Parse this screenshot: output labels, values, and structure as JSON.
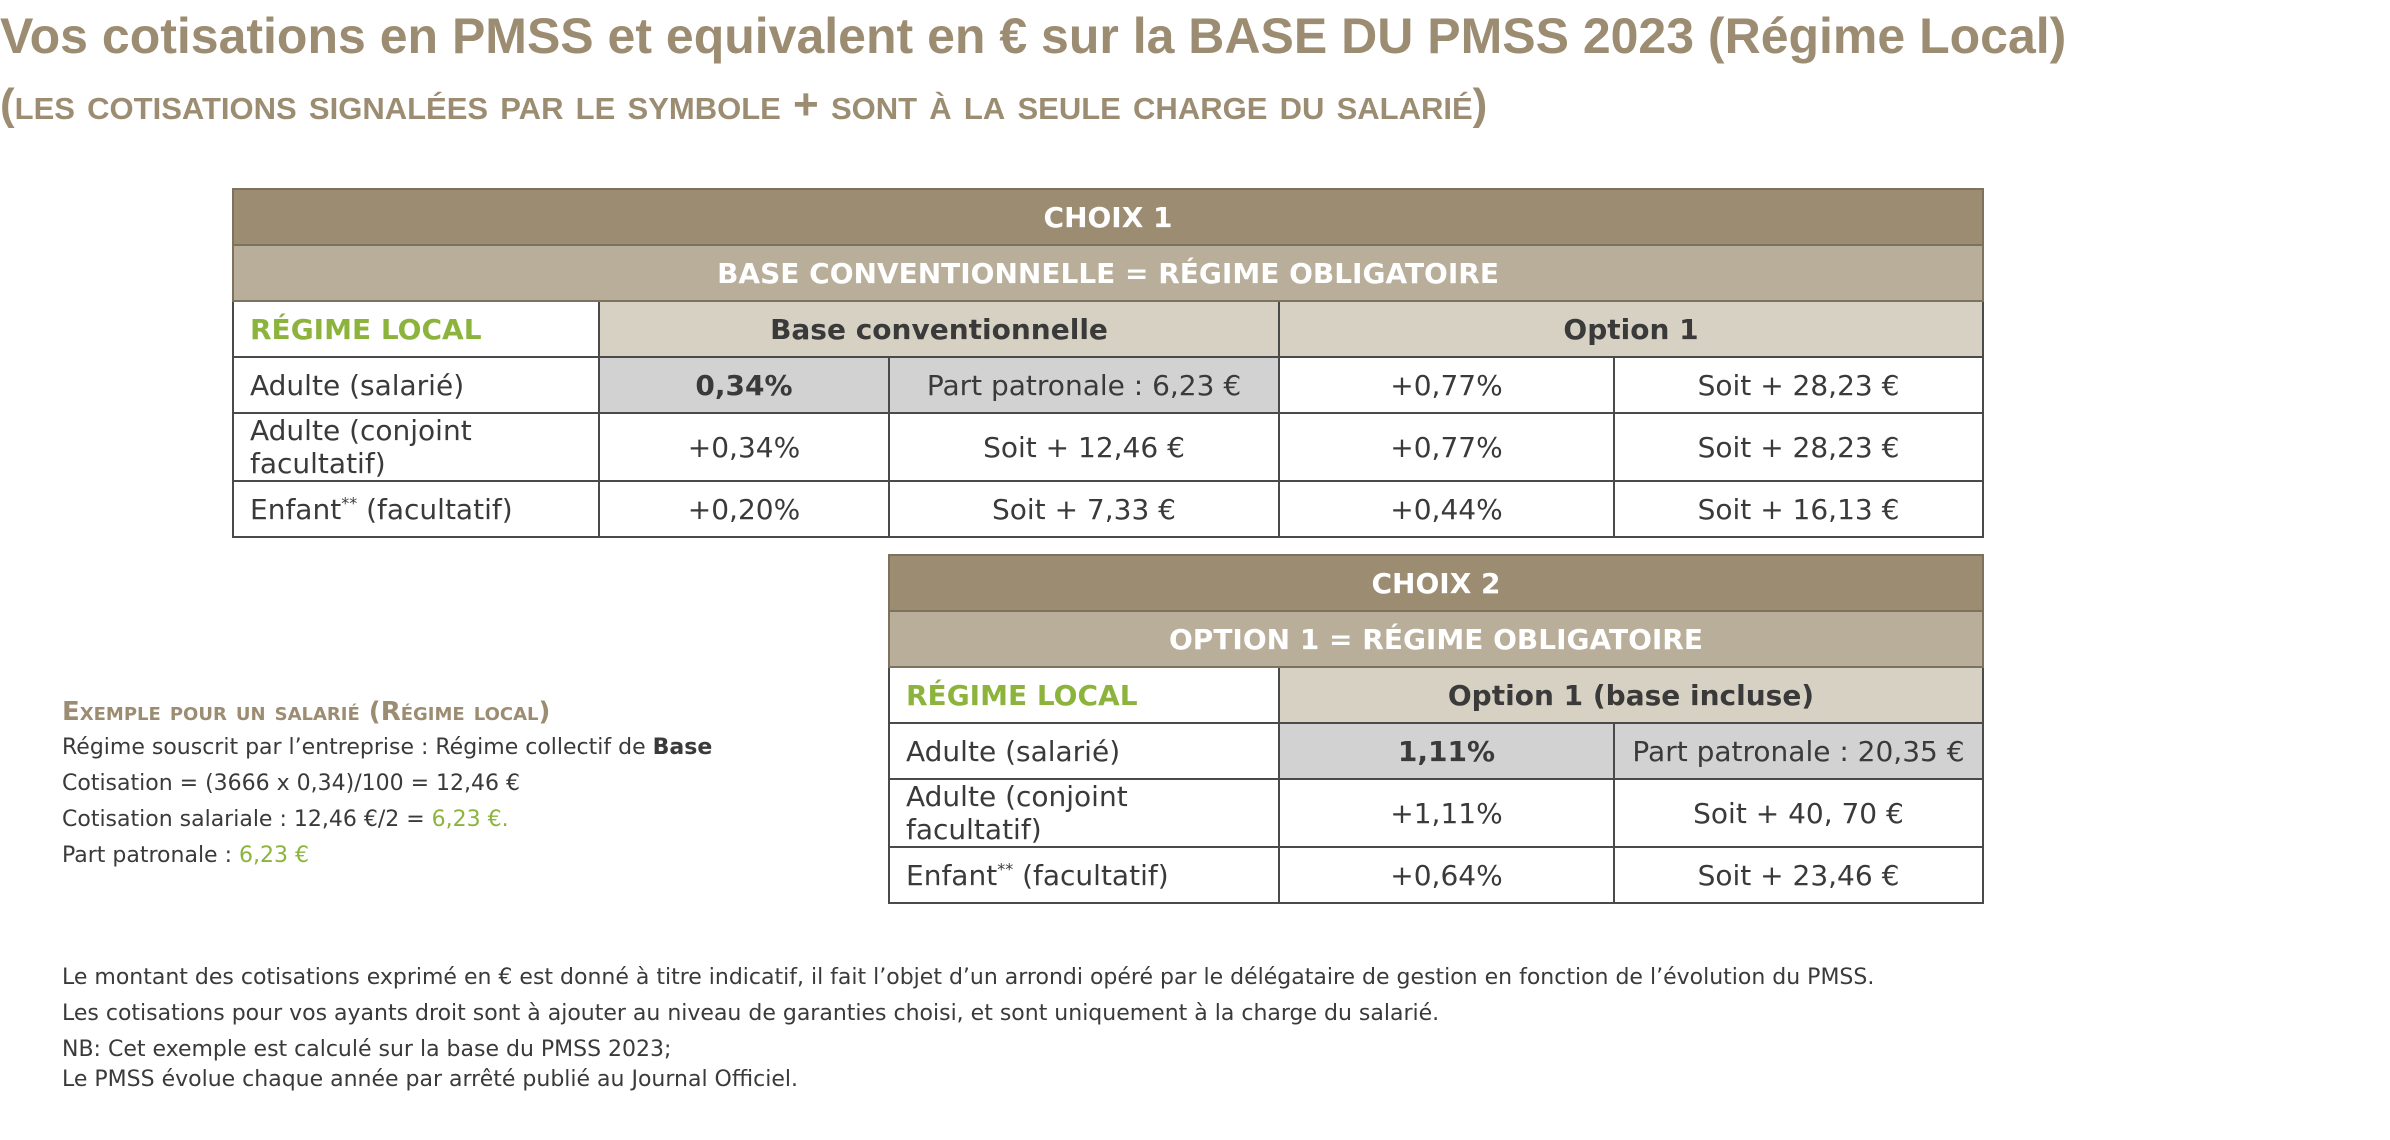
{
  "title": {
    "line1": "Vos cotisations en PMSS et equivalent en € sur la BASE DU PMSS 2023 (Régime Local)",
    "line2_open": "(",
    "line2_text": "LES COTISATIONS SIGNALÉES PAR LE SYMBOLE",
    "line2_plus": " + ",
    "line2_text2": "SONT À LA SEULE CHARGE DU SALARIÉ",
    "line2_close": ")"
  },
  "choix1": {
    "title": "CHOIX 1",
    "subtitle": "BASE CONVENTIONNELLE = RÉGIME OBLIGATOIRE",
    "regime_label": "RÉGIME LOCAL",
    "col_base": "Base conventionnelle",
    "col_option": "Option 1",
    "rows": [
      {
        "label": "Adulte (salarié)",
        "sup": "",
        "label_after": "",
        "base_rate": "0,34%",
        "base_amount": "Part patronale : 6,23 €",
        "opt_rate": "+0,77%",
        "opt_amount": "Soit + 28,23 €"
      },
      {
        "label": "Adulte (conjoint facultatif)",
        "sup": "",
        "label_after": "",
        "base_rate": "+0,34%",
        "base_amount": "Soit + 12,46 €",
        "opt_rate": "+0,77%",
        "opt_amount": "Soit + 28,23 €"
      },
      {
        "label": "Enfant",
        "sup": "**",
        "label_after": " (facultatif)",
        "base_rate": "+0,20%",
        "base_amount": "Soit + 7,33 €",
        "opt_rate": "+0,44%",
        "opt_amount": "Soit + 16,13 €"
      }
    ]
  },
  "choix2": {
    "title": "CHOIX 2",
    "subtitle": "OPTION 1 = RÉGIME OBLIGATOIRE",
    "regime_label": "RÉGIME LOCAL",
    "col_option": "Option 1 (base incluse)",
    "rows": [
      {
        "label": "Adulte (salarié)",
        "sup": "",
        "label_after": "",
        "rate": "1,11%",
        "amount": "Part patronale : 20,35 €"
      },
      {
        "label": "Adulte (conjoint facultatif)",
        "sup": "",
        "label_after": "",
        "rate": "+1,11%",
        "amount": "Soit + 40, 70 €"
      },
      {
        "label": "Enfant",
        "sup": "**",
        "label_after": " (facultatif)",
        "rate": "+0,64%",
        "amount": "Soit + 23,46 €"
      }
    ]
  },
  "example": {
    "title": "Exemple pour un salarié (Régime local)",
    "line1_prefix": "Régime souscrit par l’entreprise : Régime collectif de ",
    "line1_bold": "Base",
    "line2": "Cotisation = (3666 x 0,34)/100 = 12,46 €",
    "line3_prefix": "Cotisation salariale : 12,46 €/2 = ",
    "line3_green": "6,23 €.",
    "line4_prefix": "Part patronale : ",
    "line4_green": "6,23 €"
  },
  "notes": [
    "Le montant des cotisations exprimé en € est donné à titre indicatif, il fait l’objet d’un arrondi opéré par le délégataire de gestion en fonction de l’évolution du PMSS.",
    "Les cotisations pour vos ayants droit sont à ajouter au niveau de garanties choisi, et sont uniquement à la charge du salarié.",
    "NB: Cet exemple est calculé sur la base du PMSS 2023;",
    "Le PMSS évolue chaque année par arrêté publié au Journal Officiel."
  ],
  "colors": {
    "brand_taupe": "#9c8d72",
    "taupe_mid": "#b8ae99",
    "taupe_light": "#d7d1c4",
    "accent_green": "#8cb43c",
    "highlight_grey": "#d2d2d2"
  }
}
